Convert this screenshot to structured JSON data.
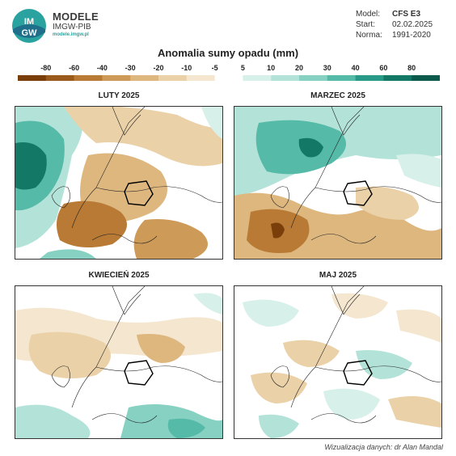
{
  "brand": {
    "logo_text_top": "IM",
    "logo_text_bottom": "GW",
    "name": "MODELE",
    "sub": "IMGW-PIB",
    "url": "modele.imgw.pl"
  },
  "meta": [
    {
      "key": "Model:",
      "value": "CFS E3"
    },
    {
      "key": "Start:",
      "value": "02.02.2025"
    },
    {
      "key": "Norma:",
      "value": "1991-2020"
    }
  ],
  "title": "Anomalia sumy opadu (mm)",
  "scale": {
    "labels": [
      "-80",
      "-60",
      "-40",
      "-30",
      "-20",
      "-10",
      "-5",
      "5",
      "10",
      "20",
      "30",
      "40",
      "60",
      "80"
    ],
    "colors": [
      "#7a3e0b",
      "#9a5a1b",
      "#b87a34",
      "#cd9a57",
      "#deb77f",
      "#ead1a8",
      "#f4e6cf",
      "#ffffff",
      "#d8f0ea",
      "#b3e3d8",
      "#86d1c2",
      "#55baa8",
      "#2a9a88",
      "#147866",
      "#0b5a4c"
    ]
  },
  "panels": [
    {
      "title": "LUTY 2025"
    },
    {
      "title": "MARZEC 2025"
    },
    {
      "title": "KWIECIEŃ 2025"
    },
    {
      "title": "MAJ 2025"
    }
  ],
  "credit": "Wizualizacja danych: dr Alan Mandal"
}
